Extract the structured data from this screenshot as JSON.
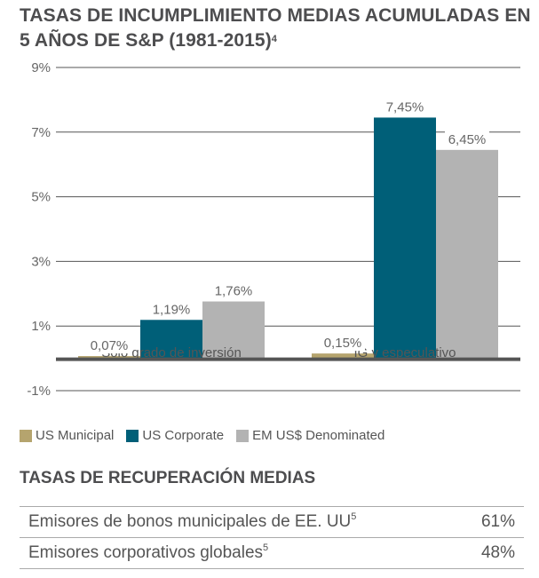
{
  "title": {
    "text": "TASAS DE INCUMPLIMIENTO MEDIAS ACUMULADAS EN 5 AÑOS DE S&P (1981-2015)",
    "footnote": "4"
  },
  "chart_data": {
    "type": "bar",
    "title": "TASAS DE INCUMPLIMIENTO MEDIAS ACUMULADAS EN 5 AÑOS DE S&P (1981-2015)",
    "xlabel": "",
    "ylabel": "",
    "categories": [
      "Solo grado de inversión",
      "IG y especulativo"
    ],
    "series": [
      {
        "name": "US Municipal",
        "color": "#b5a46e",
        "values": [
          0.07,
          0.15
        ],
        "labels": [
          "0,07%",
          "0,15%"
        ]
      },
      {
        "name": "US Corporate",
        "color": "#005f78",
        "values": [
          1.19,
          7.45
        ],
        "labels": [
          "1,19%",
          "7,45%"
        ]
      },
      {
        "name": "EM US$ Denominated",
        "color": "#b3b3b3",
        "values": [
          1.76,
          6.45
        ],
        "labels": [
          "1,76%",
          "6,45%"
        ]
      }
    ],
    "ylim": [
      -1,
      9
    ],
    "yticks": [
      9,
      7,
      5,
      3,
      1,
      -1
    ],
    "ytick_labels": [
      "9%",
      "7%",
      "5%",
      "3%",
      "1%",
      "-1%"
    ],
    "grid": true,
    "legend": "bottom-left"
  },
  "recovery": {
    "title": "TASAS DE RECUPERACIÓN MEDIAS",
    "rows": [
      {
        "label": "Emisores de bonos municipales de EE. UU",
        "footnote": "5",
        "value": "61%"
      },
      {
        "label": "Emisores corporativos globales",
        "footnote": "5",
        "value": "48%"
      }
    ]
  }
}
